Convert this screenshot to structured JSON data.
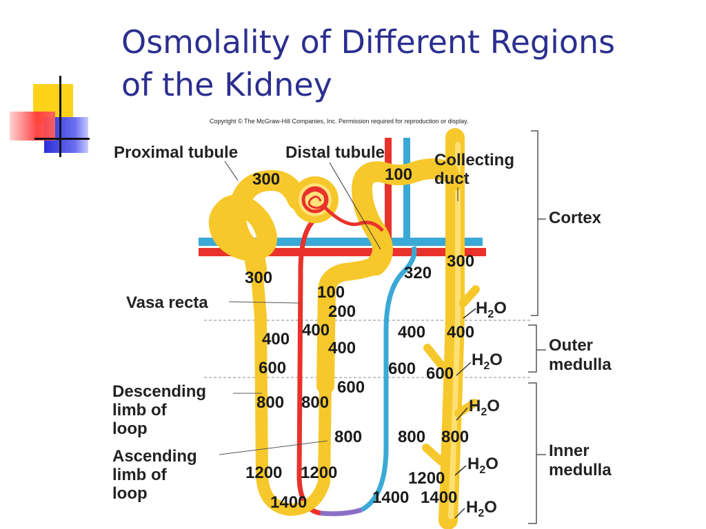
{
  "title_line1": "Osmolality of Different Regions",
  "title_line2": "of the Kidney",
  "copyright": "Copyright © The McGraw-Hill Companies, Inc. Permission required for reproduction or display.",
  "labels": {
    "proximal_tubule": "Proximal tubule",
    "distal_tubule": "Distal tubule",
    "collecting_duct_1": "Collecting",
    "collecting_duct_2": "duct",
    "cortex": "Cortex",
    "outer_medulla_1": "Outer",
    "outer_medulla_2": "medulla",
    "inner_medulla_1": "Inner",
    "inner_medulla_2": "medulla",
    "vasa_recta": "Vasa recta",
    "descending_1": "Descending",
    "descending_2": "limb of",
    "descending_3": "loop",
    "ascending_1": "Ascending",
    "ascending_2": "limb of",
    "ascending_3": "loop",
    "h2o_main": "H",
    "h2o_sub": "2",
    "h2o_end": "O"
  },
  "values": [
    {
      "id": "prox-300",
      "text": "300"
    },
    {
      "id": "distal-100",
      "text": "100"
    },
    {
      "id": "desc-300",
      "text": "300"
    },
    {
      "id": "asc-100",
      "text": "100"
    },
    {
      "id": "asc-200",
      "text": "200"
    },
    {
      "id": "vasa-320",
      "text": "320"
    },
    {
      "id": "cd-300",
      "text": "300"
    },
    {
      "id": "desc-400",
      "text": "400"
    },
    {
      "id": "asc-400a",
      "text": "400"
    },
    {
      "id": "asc-400b",
      "text": "400"
    },
    {
      "id": "vasa-400",
      "text": "400"
    },
    {
      "id": "cd-400",
      "text": "400"
    },
    {
      "id": "desc-600",
      "text": "600"
    },
    {
      "id": "asc-600",
      "text": "600"
    },
    {
      "id": "vasa-600",
      "text": "600"
    },
    {
      "id": "cd-600",
      "text": "600"
    },
    {
      "id": "desc-800",
      "text": "800"
    },
    {
      "id": "asc-800a",
      "text": "800"
    },
    {
      "id": "asc-800b",
      "text": "800"
    },
    {
      "id": "vasa-800",
      "text": "800"
    },
    {
      "id": "cd-800",
      "text": "800"
    },
    {
      "id": "desc-1200",
      "text": "1200"
    },
    {
      "id": "asc-1200",
      "text": "1200"
    },
    {
      "id": "cd-1200",
      "text": "1200"
    },
    {
      "id": "loop-1400",
      "text": "1400"
    },
    {
      "id": "vasa-1400",
      "text": "1400"
    },
    {
      "id": "cd-1400",
      "text": "1400"
    }
  ]
}
